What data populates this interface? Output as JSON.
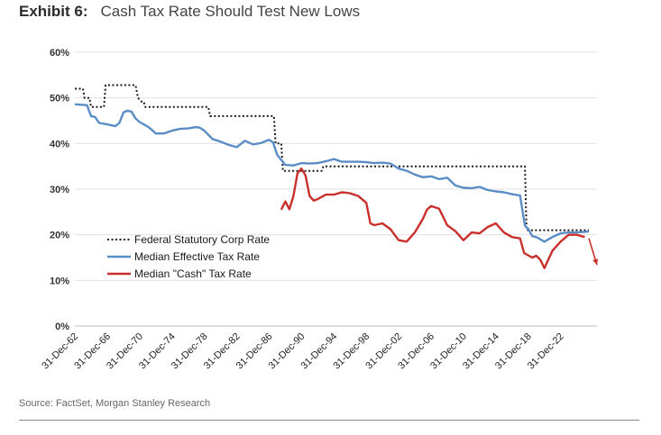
{
  "header": {
    "tag": "Exhibit 6:",
    "title": "Cash Tax Rate Should Test New Lows"
  },
  "source": "Source: FactSet, Morgan Stanley Research",
  "chart_data": {
    "type": "line",
    "title": "Cash Tax Rate Should Test New Lows",
    "xlabel": "",
    "ylabel": "",
    "ylim": [
      0,
      60
    ],
    "xlim": [
      1962,
      2026.5
    ],
    "y_ticks": [
      0,
      10,
      20,
      30,
      40,
      50,
      60
    ],
    "y_tick_labels": [
      "0%",
      "10%",
      "20%",
      "30%",
      "40%",
      "50%",
      "60%"
    ],
    "x_ticks": [
      1962,
      1966,
      1970,
      1974,
      1978,
      1982,
      1986,
      1990,
      1994,
      1998,
      2002,
      2006,
      2010,
      2014,
      2018,
      2022
    ],
    "x_tick_labels": [
      "31-Dec-62",
      "31-Dec-66",
      "31-Dec-70",
      "31-Dec-74",
      "31-Dec-78",
      "31-Dec-82",
      "31-Dec-86",
      "31-Dec-90",
      "31-Dec-94",
      "31-Dec-98",
      "31-Dec-02",
      "31-Dec-06",
      "31-Dec-10",
      "31-Dec-14",
      "31-Dec-18",
      "31-Dec-22"
    ],
    "grid": "horizontal",
    "legend": {
      "placement": "center-left",
      "entries": [
        "Federal Statutory Corp Rate",
        "Median Effective Tax Rate",
        "Median \"Cash\" Tax Rate"
      ]
    },
    "series": [
      {
        "name": "Federal Statutory Corp Rate",
        "color": "#1a1a1a",
        "style": "dotted",
        "x": [
          1962,
          1963,
          1963.2,
          1963.8,
          1964,
          1964.5,
          1965,
          1965.6,
          1965.8,
          1968,
          1969.5,
          1969.8,
          1970.2,
          1970.5,
          1970.7,
          1978.5,
          1978.7,
          1986.6,
          1986.8,
          1987.5,
          1987.7,
          1992.5,
          1992.7,
          2017.6,
          2017.8,
          2025.5
        ],
        "y": [
          52,
          52,
          50,
          50,
          48,
          48,
          48,
          48,
          52.8,
          52.8,
          52.8,
          50,
          49.2,
          49.2,
          48,
          48,
          46,
          46,
          40,
          40,
          34,
          34,
          35,
          35,
          21,
          21
        ]
      },
      {
        "name": "Median Effective Tax Rate",
        "color": "#5a8cc6",
        "style": "solid",
        "x": [
          1962,
          1963.5,
          1964,
          1964.5,
          1965,
          1966,
          1967,
          1967.5,
          1968,
          1968.5,
          1969,
          1969.5,
          1970,
          1971,
          1971.5,
          1972,
          1973,
          1974,
          1975,
          1976,
          1977,
          1977.5,
          1978,
          1979,
          1980,
          1981,
          1982,
          1983,
          1984,
          1985,
          1986,
          1986.5,
          1987,
          1988,
          1989,
          1990,
          1991,
          1992,
          1993,
          1994,
          1995,
          1996,
          1997,
          1998,
          1999,
          2000,
          2001,
          2002,
          2003,
          2004,
          2005,
          2006,
          2007,
          2008,
          2009,
          2010,
          2011,
          2012,
          2013,
          2014,
          2015,
          2016,
          2017,
          2017.6,
          2018,
          2018.5,
          2019,
          2020,
          2021,
          2022,
          2023,
          2024,
          2025.5
        ],
        "y": [
          48.6,
          48.4,
          46,
          45.8,
          44.5,
          44.2,
          43.8,
          44.5,
          46.8,
          47.2,
          47,
          45.5,
          44.7,
          43.7,
          43,
          42.2,
          42.2,
          42.8,
          43.2,
          43.3,
          43.6,
          43.4,
          42.8,
          41,
          40.4,
          39.7,
          39.2,
          40.6,
          39.8,
          40.1,
          40.8,
          40.2,
          37.5,
          35.3,
          35.2,
          35.7,
          35.6,
          35.7,
          36.1,
          36.6,
          36,
          36,
          36,
          35.9,
          35.7,
          35.8,
          35.6,
          34.5,
          34,
          33.2,
          32.6,
          32.8,
          32.2,
          32.5,
          30.8,
          30.3,
          30.2,
          30.5,
          29.8,
          29.5,
          29.3,
          28.9,
          28.6,
          22,
          21.3,
          19.7,
          19.5,
          18.5,
          19.5,
          20.3,
          20.5,
          20.5,
          20.7
        ]
      },
      {
        "name": "Median \"Cash\" Tax Rate",
        "color": "#c9302c",
        "style": "solid",
        "x": [
          1987.5,
          1988,
          1988.5,
          1989,
          1989.5,
          1990,
          1990.5,
          1991,
          1991.5,
          1992,
          1993,
          1994,
          1995,
          1996,
          1997,
          1998,
          1998.5,
          1999,
          2000,
          2001,
          2002,
          2003,
          2004,
          2005,
          2005.5,
          2006,
          2007,
          2008,
          2009,
          2010,
          2011,
          2012,
          2013,
          2014,
          2015,
          2016,
          2017,
          2017.5,
          2018,
          2018.5,
          2019,
          2019.5,
          2020,
          2021,
          2022,
          2023,
          2024,
          2025
        ],
        "y": [
          25.5,
          27.3,
          25.6,
          28.5,
          33.5,
          34.5,
          33,
          28.5,
          27.5,
          27.8,
          28.8,
          28.8,
          29.3,
          29.1,
          28.5,
          27,
          22.5,
          22.1,
          22.5,
          21.2,
          18.8,
          18.5,
          20.5,
          23.5,
          25.5,
          26.3,
          25.7,
          22.1,
          20.8,
          18.8,
          20.5,
          20.3,
          21.7,
          22.5,
          20.5,
          19.5,
          19.2,
          16,
          15.5,
          15,
          15.4,
          14.5,
          12.7,
          16.5,
          18.5,
          20,
          20,
          19.5
        ]
      }
    ],
    "annotations": [
      {
        "type": "arrow",
        "color": "#c9302c",
        "from": [
          2025.5,
          19.2
        ],
        "to": [
          2026.5,
          13.4
        ]
      }
    ]
  }
}
